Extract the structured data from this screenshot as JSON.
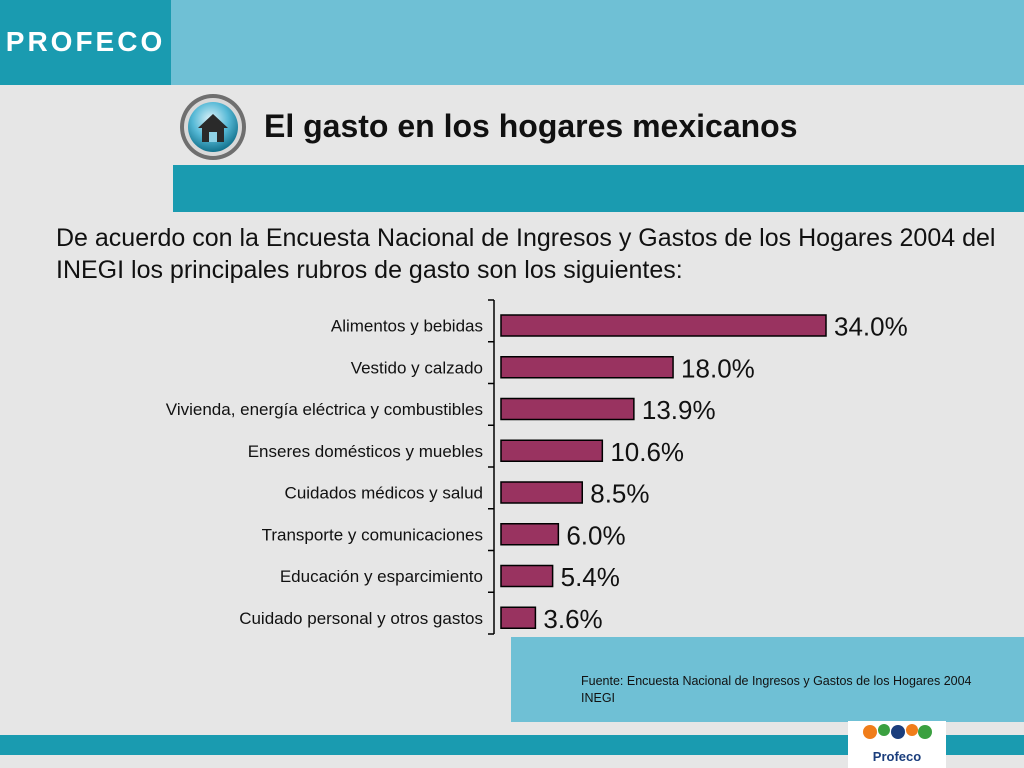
{
  "header": {
    "brand": "PROFECO",
    "title": "El gasto en los hogares mexicanos"
  },
  "intro": "De acuerdo con la Encuesta Nacional de Ingresos y Gastos de los Hogares 2004 del INEGI los principales rubros de gasto son los siguientes:",
  "chart_data": {
    "type": "bar",
    "orientation": "horizontal",
    "categories": [
      "Alimentos y bebidas",
      "Vestido y calzado",
      "Vivienda, energía eléctrica y combustibles",
      "Enseres domésticos y muebles",
      "Cuidados médicos y salud",
      "Transporte y comunicaciones",
      "Educación y esparcimiento",
      "Cuidado personal y otros gastos"
    ],
    "values": [
      34.0,
      18.0,
      13.9,
      10.6,
      8.5,
      6.0,
      5.4,
      3.6
    ],
    "value_labels": [
      "34.0%",
      "18.0%",
      "13.9%",
      "10.6%",
      "8.5%",
      "6.0%",
      "5.4%",
      "3.6%"
    ],
    "xlim": [
      0,
      40
    ],
    "grid": false,
    "bar_color": "#993360",
    "title": "",
    "xlabel": "",
    "ylabel": ""
  },
  "source": "Fuente: Encuesta Nacional de Ingresos y Gastos de los Hogares 2004 INEGI",
  "footer": {
    "logo_text": "Profeco"
  },
  "colors": {
    "accent_dark": "#1a9bb0",
    "accent_light": "#6fc0d5",
    "background": "#e6e6e6",
    "bar": "#993360"
  }
}
